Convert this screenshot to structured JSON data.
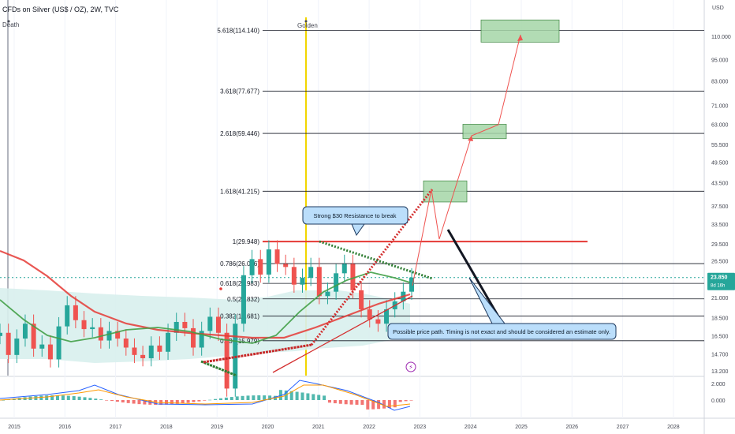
{
  "chart_data": {
    "type": "line",
    "title": "CFDs on Silver (US$ / OZ), 2W, TVC",
    "death_label": "Death",
    "golden_label": "Golden",
    "currency": "USD",
    "x_ticks": [
      "2015",
      "2016",
      "2017",
      "2018",
      "2019",
      "2020",
      "2021",
      "2022",
      "2023",
      "2024",
      "2025",
      "2026",
      "2027",
      "2028"
    ],
    "y_ticks": [
      "110.000",
      "95.000",
      "83.000",
      "71.000",
      "63.000",
      "55.500",
      "49.500",
      "43.500",
      "37.500",
      "33.500",
      "29.500",
      "26.500",
      "21.000",
      "18.500",
      "16.500",
      "14.700",
      "13.200"
    ],
    "price_badge": {
      "value": "23.850",
      "sub": "8d 16h"
    },
    "fib_levels": [
      {
        "label": "5.618(114.140)",
        "value": 114.14
      },
      {
        "label": "3.618(77.677)",
        "value": 77.677
      },
      {
        "label": "2.618(59.446)",
        "value": 59.446
      },
      {
        "label": "1.618(41.215)",
        "value": 41.215
      },
      {
        "label": "1(29.948)",
        "value": 29.948
      },
      {
        "label": "0.786(26.046)",
        "value": 26.046
      },
      {
        "label": "0.618(22.983)",
        "value": 22.983
      },
      {
        "label": "0.5(20.832)",
        "value": 20.832
      },
      {
        "label": "0.382(18.681)",
        "value": 18.681
      },
      {
        "label": "0.236(15.979)",
        "value": 15.979
      }
    ],
    "current_price": 23.85,
    "resistance": 29.948,
    "annotations": [
      "Strong $30 Resistance to break",
      "Possible price path. Timing is not exact and should be considered an estimate only."
    ],
    "target_zones": [
      {
        "from": 38.5,
        "to": 44.0
      },
      {
        "from": 57.5,
        "to": 63.0
      },
      {
        "from": 106.0,
        "to": 122.0
      }
    ],
    "macd_ticks": [
      "2.000",
      "0.000"
    ],
    "price_series": [
      16.8,
      14.6,
      16.2,
      17.8,
      15.2,
      15.6,
      14.2,
      17.5,
      20.0,
      18.2,
      17.2,
      17.4,
      16.0,
      17.0,
      16.2,
      15.3,
      14.6,
      14.3,
      15.5,
      14.9,
      16.8,
      18.0,
      17.3,
      15.3,
      17.0,
      18.6,
      16.8,
      11.8,
      17.8,
      24.2,
      26.8,
      24.3,
      28.5,
      26.0,
      25.5,
      22.8,
      23.8,
      25.5,
      21.2,
      21.8,
      24.5,
      26.0,
      22.0,
      19.5,
      18.3,
      17.8,
      19.5,
      20.5,
      21.8,
      23.85
    ]
  },
  "colors": {
    "up": "#26a69a",
    "down": "#ef5350",
    "ma_red": "#e53935",
    "ma_green": "#43a047",
    "gold": "#f2d600",
    "zone": "#a5d6a7",
    "box": "#bbdefb"
  }
}
